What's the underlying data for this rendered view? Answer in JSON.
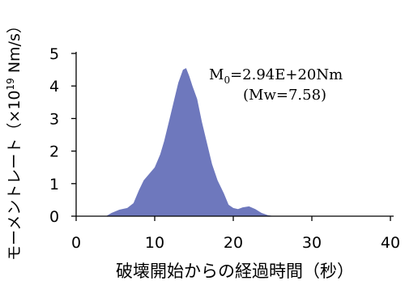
{
  "chart_data": {
    "type": "area",
    "xlabel": "破壊開始からの経過時間（秒）",
    "ylabel_prefix": "モーメントレート（×10",
    "ylabel_exp": "19",
    "ylabel_suffix": " Nm/s）",
    "xlim": [
      0,
      40
    ],
    "ylim": [
      0,
      5
    ],
    "xticks": [
      0,
      10,
      20,
      30,
      40
    ],
    "xtick_labels": [
      "0",
      "10",
      "20",
      "30",
      "40"
    ],
    "yticks": [
      0,
      1,
      2,
      3,
      4,
      5
    ],
    "ytick_labels": [
      "0",
      "1",
      "2",
      "3",
      "4",
      "5"
    ],
    "grid": false,
    "fill_color": "#6e78bd",
    "series": [
      {
        "x": [
          0,
          3.8,
          4.5,
          5.5,
          6.5,
          7.3,
          8.0,
          8.6,
          9.3,
          10.0,
          10.7,
          11.2,
          11.8,
          12.4,
          13.0,
          13.6,
          14.0,
          14.4,
          14.8,
          15.4,
          16.0,
          16.6,
          17.3,
          18.0,
          18.8,
          19.4,
          20.0,
          20.6,
          21.2,
          22.0,
          22.8,
          23.6,
          24.4,
          25.2,
          40
        ],
        "y": [
          0,
          0,
          0.1,
          0.2,
          0.25,
          0.4,
          0.8,
          1.1,
          1.3,
          1.5,
          1.9,
          2.3,
          2.9,
          3.5,
          4.1,
          4.5,
          4.55,
          4.3,
          4.0,
          3.6,
          2.9,
          2.3,
          1.6,
          1.1,
          0.7,
          0.35,
          0.25,
          0.22,
          0.27,
          0.3,
          0.22,
          0.1,
          0.03,
          0,
          0
        ]
      }
    ],
    "annotation_line1_main": "M",
    "annotation_line1_sub": "0",
    "annotation_line1_rest": "=2.94E+20Nm",
    "annotation_line2": "(Mw=7.58)"
  }
}
